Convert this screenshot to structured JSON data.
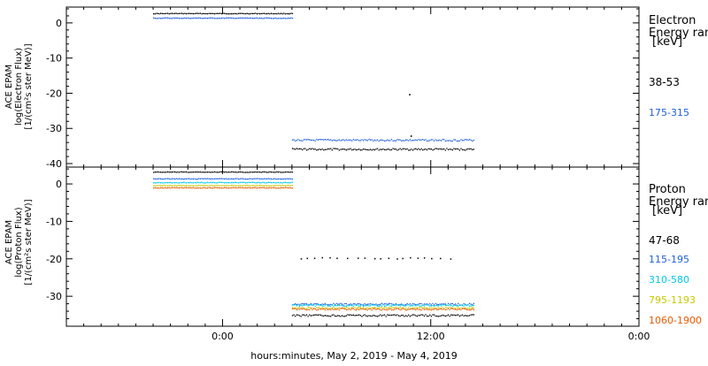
{
  "footer_label": "hours:minutes,  May  2, 2019 - May  4, 2019",
  "chart_data": [
    {
      "type": "scatter",
      "panel": "electron",
      "ylabel_lines": [
        "ACE EPAM",
        "log(Electron Flux)",
        "[1/(cm²s ster MeV)]"
      ],
      "ylim": [
        -41,
        4.5
      ],
      "y_ticks": [
        0,
        -10,
        -20,
        -30,
        -40
      ],
      "x_tick_labels": [],
      "legend_title_lines": [
        "Electron",
        "Energy ran"
      ],
      "legend_unit": "[keV]",
      "series": [
        {
          "name": "38-53",
          "color": "#000000",
          "segments": [
            {
              "x_range": [
                "2019-05-02T20:00",
                "2019-05-03T04:00"
              ],
              "y": 2.8
            },
            {
              "x_range": [
                "2019-05-03T04:00",
                "2019-05-03T14:30"
              ],
              "y": -35.8
            }
          ],
          "outliers": [
            {
              "x": "2019-05-03T10:45",
              "y": -20.2
            },
            {
              "x": "2019-05-03T10:50",
              "y": -32.0
            }
          ]
        },
        {
          "name": "175-315",
          "color": "#1e5fdc",
          "segments": [
            {
              "x_range": [
                "2019-05-02T20:00",
                "2019-05-03T04:00"
              ],
              "y": 1.5
            },
            {
              "x_range": [
                "2019-05-03T04:00",
                "2019-05-03T14:30"
              ],
              "y": -33.2
            }
          ]
        }
      ]
    },
    {
      "type": "scatter",
      "panel": "proton",
      "ylabel_lines": [
        "ACE EPAM",
        "log(Proton Flux)",
        "[1/(cm²s ster MeV)]"
      ],
      "ylim": [
        -38,
        4.5
      ],
      "y_ticks": [
        0,
        -10,
        -20,
        -30
      ],
      "x_tick_labels": [
        "0:00",
        "12:00",
        "0:00"
      ],
      "legend_title_lines": [
        "Proton",
        "Energy ran"
      ],
      "legend_unit": "[keV]",
      "series": [
        {
          "name": "47-68",
          "color": "#000000",
          "segments": [
            {
              "x_range": [
                "2019-05-02T20:00",
                "2019-05-03T04:00"
              ],
              "y": 3.3
            },
            {
              "x_range": [
                "2019-05-03T04:00",
                "2019-05-03T14:30"
              ],
              "y": -35.0
            }
          ],
          "band": {
            "x_range": [
              "2019-05-03T04:30",
              "2019-05-03T13:30"
            ],
            "y": -19.7
          }
        },
        {
          "name": "115-195",
          "color": "#1e5fdc",
          "segments": [
            {
              "x_range": [
                "2019-05-02T20:00",
                "2019-05-03T04:00"
              ],
              "y": 1.5
            },
            {
              "x_range": [
                "2019-05-03T04:00",
                "2019-05-03T14:30"
              ],
              "y": -32.0
            }
          ]
        },
        {
          "name": "310-580",
          "color": "#00c8e6",
          "segments": [
            {
              "x_range": [
                "2019-05-02T20:00",
                "2019-05-03T04:00"
              ],
              "y": 0.5
            },
            {
              "x_range": [
                "2019-05-03T04:00",
                "2019-05-03T14:30"
              ],
              "y": -32.3
            }
          ]
        },
        {
          "name": "795-1193",
          "color": "#c8c800",
          "segments": [
            {
              "x_range": [
                "2019-05-02T20:00",
                "2019-05-03T04:00"
              ],
              "y": -0.3
            },
            {
              "x_range": [
                "2019-05-03T04:00",
                "2019-05-03T14:30"
              ],
              "y": -33.0
            }
          ]
        },
        {
          "name": "1060-1900",
          "color": "#e65a00",
          "segments": [
            {
              "x_range": [
                "2019-05-02T20:00",
                "2019-05-03T04:00"
              ],
              "y": -0.9
            },
            {
              "x_range": [
                "2019-05-03T04:00",
                "2019-05-03T14:30"
              ],
              "y": -33.3
            }
          ]
        }
      ]
    }
  ]
}
